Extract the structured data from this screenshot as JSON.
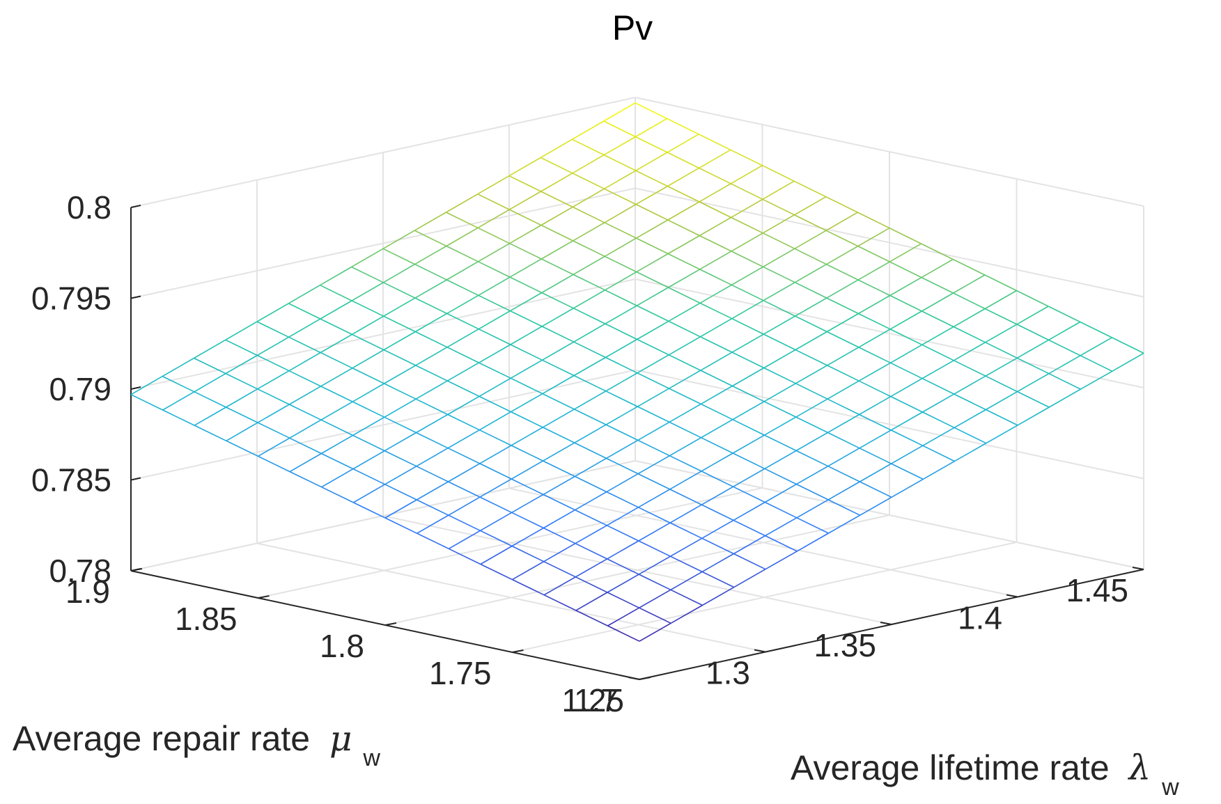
{
  "chart_data": {
    "type": "surface",
    "title": "Pv",
    "x": {
      "label": "Average lifetime rate",
      "symbol": "λ",
      "subscript": "w",
      "range": [
        1.25,
        1.45
      ],
      "ticks": [
        1.25,
        1.3,
        1.35,
        1.4,
        1.45
      ],
      "tick_labels": [
        "1.25",
        "1.3",
        "1.35",
        "1.4",
        "1.45"
      ],
      "samples": 17
    },
    "y": {
      "label": "Average repair rate",
      "symbol": "μ",
      "subscript": "w",
      "range": [
        1.7,
        1.9
      ],
      "ticks": [
        1.7,
        1.75,
        1.8,
        1.85,
        1.9
      ],
      "tick_labels": [
        "1.7",
        "1.75",
        "1.8",
        "1.85",
        "1.9"
      ],
      "samples": 17
    },
    "z": {
      "label": "",
      "range": [
        0.78,
        0.8
      ],
      "ticks": [
        0.78,
        0.785,
        0.79,
        0.795,
        0.8
      ],
      "tick_labels": [
        "0.78",
        "0.785",
        "0.79",
        "0.795",
        "0.8"
      ]
    },
    "surface_corners": {
      "x_min_y_min": 0.7821,
      "x_max_y_min": 0.7919,
      "x_min_y_max": 0.7897,
      "x_max_y_max": 0.7997
    },
    "colormap": "parula",
    "grid": true
  }
}
